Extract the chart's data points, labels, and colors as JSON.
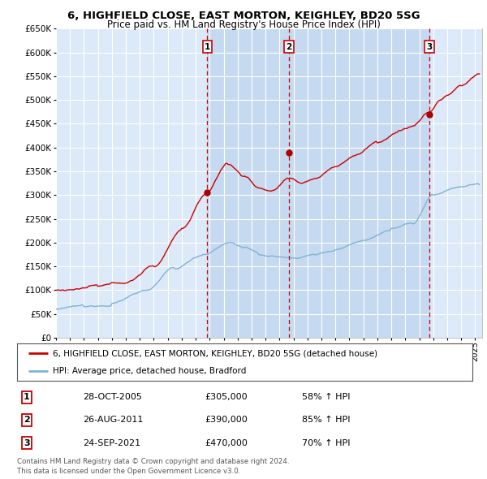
{
  "title": "6, HIGHFIELD CLOSE, EAST MORTON, KEIGHLEY, BD20 5SG",
  "subtitle": "Price paid vs. HM Land Registry's House Price Index (HPI)",
  "ylim": [
    0,
    650000
  ],
  "yticks": [
    0,
    50000,
    100000,
    150000,
    200000,
    250000,
    300000,
    350000,
    400000,
    450000,
    500000,
    550000,
    600000,
    650000
  ],
  "xlim_start": 1995.0,
  "xlim_end": 2025.5,
  "background_color": "#ffffff",
  "plot_bg_color": "#dce9f8",
  "shade_color": "#c5d9f0",
  "grid_color": "#ffffff",
  "sale_dates": [
    2005.83,
    2011.65,
    2021.73
  ],
  "sale_prices": [
    305000,
    390000,
    470000
  ],
  "sale_labels": [
    "1",
    "2",
    "3"
  ],
  "sale_marker_color": "#aa0000",
  "hpi_line_color": "#7fb3d3",
  "price_line_color": "#cc0000",
  "dashed_line_color": "#cc0000",
  "legend_entries": [
    "6, HIGHFIELD CLOSE, EAST MORTON, KEIGHLEY, BD20 5SG (detached house)",
    "HPI: Average price, detached house, Bradford"
  ],
  "table_entries": [
    {
      "num": "1",
      "date": "28-OCT-2005",
      "price": "£305,000",
      "change": "58% ↑ HPI"
    },
    {
      "num": "2",
      "date": "26-AUG-2011",
      "price": "£390,000",
      "change": "85% ↑ HPI"
    },
    {
      "num": "3",
      "date": "24-SEP-2021",
      "price": "£470,000",
      "change": "70% ↑ HPI"
    }
  ],
  "footer": "Contains HM Land Registry data © Crown copyright and database right 2024.\nThis data is licensed under the Open Government Licence v3.0.",
  "xtick_years": [
    1995,
    1996,
    1997,
    1998,
    1999,
    2000,
    2001,
    2002,
    2003,
    2004,
    2005,
    2006,
    2007,
    2008,
    2009,
    2010,
    2011,
    2012,
    2013,
    2014,
    2015,
    2016,
    2017,
    2018,
    2019,
    2020,
    2021,
    2022,
    2023,
    2024,
    2025
  ]
}
